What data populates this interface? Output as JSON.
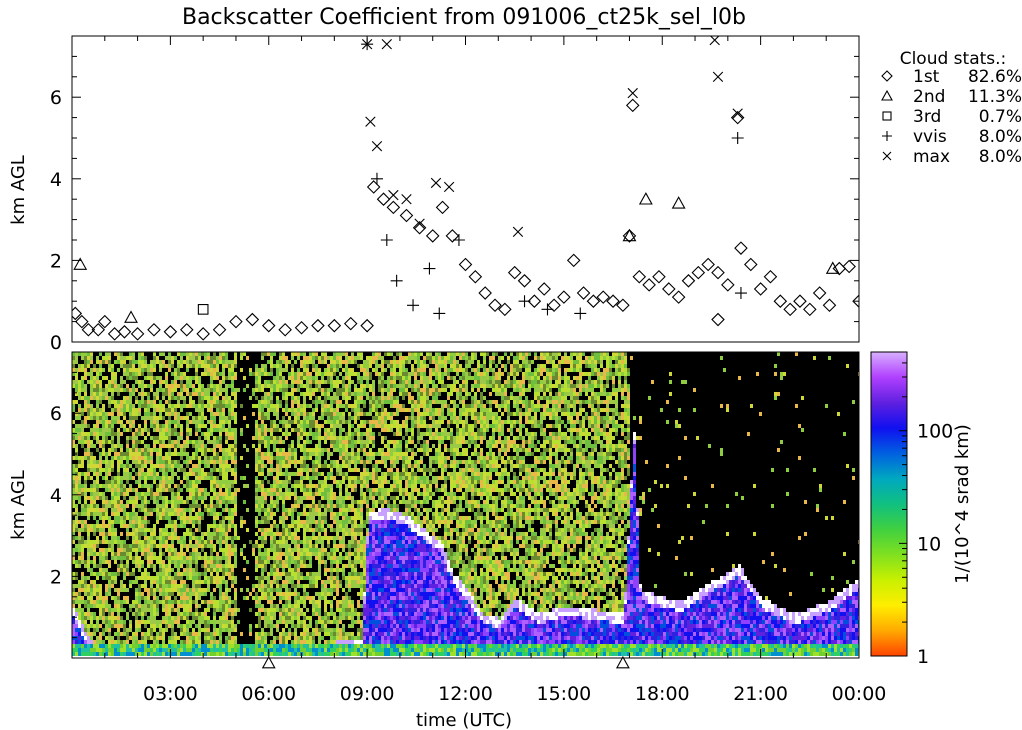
{
  "title": "Backscatter Coefficient from 091006_ct25k_sel_l0b",
  "chart_data": [
    {
      "type": "scatter",
      "ylabel": "km AGL",
      "ylim": [
        0,
        7.5
      ],
      "yticks": [
        0,
        2,
        4,
        6
      ],
      "xlim": [
        0,
        24
      ],
      "grid": false,
      "legend": {
        "title": "Cloud stats.:",
        "placement": "right",
        "entries": [
          {
            "marker": "diamond",
            "label": "1st",
            "value": "82.6%"
          },
          {
            "marker": "triangle",
            "label": "2nd",
            "value": "11.3%"
          },
          {
            "marker": "square",
            "label": "3rd",
            "value": "0.7%"
          },
          {
            "marker": "plus",
            "label": "vvis",
            "value": "8.0%"
          },
          {
            "marker": "cross",
            "label": "max",
            "value": "8.0%"
          }
        ]
      },
      "series": [
        {
          "name": "1st",
          "marker": "diamond",
          "points": [
            [
              0.1,
              0.7
            ],
            [
              0.3,
              0.5
            ],
            [
              0.5,
              0.3
            ],
            [
              0.8,
              0.3
            ],
            [
              1.0,
              0.5
            ],
            [
              1.3,
              0.2
            ],
            [
              1.6,
              0.25
            ],
            [
              2.0,
              0.2
            ],
            [
              2.5,
              0.3
            ],
            [
              3.0,
              0.25
            ],
            [
              3.5,
              0.3
            ],
            [
              4.0,
              0.2
            ],
            [
              4.5,
              0.3
            ],
            [
              5.0,
              0.5
            ],
            [
              5.5,
              0.55
            ],
            [
              6.0,
              0.4
            ],
            [
              6.5,
              0.3
            ],
            [
              7.0,
              0.35
            ],
            [
              7.5,
              0.4
            ],
            [
              8.0,
              0.4
            ],
            [
              8.5,
              0.45
            ],
            [
              9.0,
              0.4
            ],
            [
              9.2,
              3.8
            ],
            [
              9.5,
              3.5
            ],
            [
              9.8,
              3.3
            ],
            [
              10.2,
              3.1
            ],
            [
              10.6,
              2.8
            ],
            [
              11.0,
              2.6
            ],
            [
              11.3,
              3.3
            ],
            [
              11.6,
              2.6
            ],
            [
              12.0,
              1.9
            ],
            [
              12.3,
              1.6
            ],
            [
              12.6,
              1.2
            ],
            [
              12.9,
              0.9
            ],
            [
              13.2,
              0.8
            ],
            [
              13.5,
              1.7
            ],
            [
              13.8,
              1.5
            ],
            [
              14.1,
              1.0
            ],
            [
              14.4,
              1.3
            ],
            [
              14.7,
              0.9
            ],
            [
              15.0,
              1.1
            ],
            [
              15.3,
              2.0
            ],
            [
              15.6,
              1.2
            ],
            [
              15.9,
              1.0
            ],
            [
              16.2,
              1.1
            ],
            [
              16.5,
              1.0
            ],
            [
              16.8,
              0.9
            ],
            [
              17.0,
              2.6
            ],
            [
              17.1,
              5.8
            ],
            [
              17.3,
              1.6
            ],
            [
              17.6,
              1.4
            ],
            [
              17.9,
              1.6
            ],
            [
              18.2,
              1.3
            ],
            [
              18.5,
              1.1
            ],
            [
              18.8,
              1.5
            ],
            [
              19.1,
              1.7
            ],
            [
              19.4,
              1.9
            ],
            [
              19.7,
              1.7
            ],
            [
              19.7,
              0.55
            ],
            [
              20.0,
              1.4
            ],
            [
              20.3,
              5.5
            ],
            [
              20.4,
              2.3
            ],
            [
              20.7,
              1.9
            ],
            [
              21.0,
              1.3
            ],
            [
              21.3,
              1.6
            ],
            [
              21.6,
              1.0
            ],
            [
              21.9,
              0.8
            ],
            [
              22.2,
              1.0
            ],
            [
              22.5,
              0.8
            ],
            [
              22.8,
              1.2
            ],
            [
              23.1,
              0.9
            ],
            [
              23.4,
              1.8
            ],
            [
              23.7,
              1.85
            ],
            [
              24.0,
              1.0
            ]
          ]
        },
        {
          "name": "2nd",
          "marker": "triangle",
          "points": [
            [
              0.25,
              1.9
            ],
            [
              1.8,
              0.6
            ],
            [
              17.0,
              2.6
            ],
            [
              17.5,
              3.5
            ],
            [
              18.5,
              3.4
            ],
            [
              23.2,
              1.8
            ]
          ]
        },
        {
          "name": "3rd",
          "marker": "square",
          "points": [
            [
              4.0,
              0.8
            ]
          ]
        },
        {
          "name": "vvis",
          "marker": "plus",
          "points": [
            [
              9.0,
              7.3
            ],
            [
              9.3,
              4.0
            ],
            [
              9.6,
              2.5
            ],
            [
              9.9,
              1.5
            ],
            [
              10.4,
              0.9
            ],
            [
              10.9,
              1.8
            ],
            [
              11.2,
              0.7
            ],
            [
              11.8,
              2.5
            ],
            [
              13.8,
              1.0
            ],
            [
              14.5,
              0.8
            ],
            [
              15.5,
              0.7
            ],
            [
              20.3,
              5.0
            ],
            [
              20.4,
              1.2
            ]
          ]
        },
        {
          "name": "max",
          "marker": "cross",
          "points": [
            [
              9.0,
              7.3
            ],
            [
              9.1,
              5.4
            ],
            [
              9.3,
              4.8
            ],
            [
              9.6,
              7.3
            ],
            [
              9.8,
              3.6
            ],
            [
              10.2,
              3.5
            ],
            [
              10.6,
              2.9
            ],
            [
              11.1,
              3.9
            ],
            [
              11.5,
              3.8
            ],
            [
              13.6,
              2.7
            ],
            [
              17.1,
              6.1
            ],
            [
              19.6,
              7.4
            ],
            [
              19.7,
              6.5
            ],
            [
              20.3,
              5.6
            ]
          ]
        }
      ]
    },
    {
      "type": "heatmap",
      "ylabel": "km AGL",
      "ylim": [
        0,
        7.5
      ],
      "yticks": [
        2,
        4,
        6
      ],
      "xlabel": "time (UTC)",
      "xlim": [
        0,
        24
      ],
      "xticks": [
        3,
        6,
        9,
        12,
        15,
        18,
        21,
        24
      ],
      "xticklabels": [
        "03:00",
        "06:00",
        "09:00",
        "12:00",
        "15:00",
        "18:00",
        "21:00",
        "00:00"
      ],
      "colorbar": {
        "label": "1/(10^4 srad km)",
        "scale": "log",
        "range": [
          1,
          500
        ],
        "ticks": [
          1,
          10,
          100
        ],
        "ticklabels": [
          "1",
          "10",
          "100"
        ],
        "colors": [
          "#ff4400",
          "#ffaa00",
          "#ffee00",
          "#c8f000",
          "#80e020",
          "#40d040",
          "#10c080",
          "#00a8c0",
          "#0060e0",
          "#1010f0",
          "#6020e0",
          "#b040ff",
          "#d8b0ff"
        ]
      },
      "markers": [
        {
          "shape": "triangle",
          "x": 6.0
        },
        {
          "shape": "triangle",
          "x": 16.8
        }
      ],
      "cloud_base_km": [
        [
          0,
          1.2
        ],
        [
          0.3,
          0.7
        ],
        [
          0.6,
          0.3
        ],
        [
          1,
          0.2
        ],
        [
          1.5,
          0.15
        ],
        [
          3,
          0.15
        ],
        [
          5,
          0.2
        ],
        [
          6,
          0.3
        ],
        [
          7.5,
          0.3
        ],
        [
          8.8,
          0.35
        ],
        [
          9,
          3.5
        ],
        [
          9.5,
          3.6
        ],
        [
          10.2,
          3.4
        ],
        [
          10.8,
          3.0
        ],
        [
          11.2,
          2.8
        ],
        [
          11.6,
          2.0
        ],
        [
          12,
          1.6
        ],
        [
          12.5,
          1.0
        ],
        [
          13,
          0.9
        ],
        [
          13.5,
          1.4
        ],
        [
          14.2,
          1.0
        ],
        [
          15,
          1.2
        ],
        [
          16,
          1.1
        ],
        [
          16.8,
          1.0
        ],
        [
          17.1,
          5.6
        ],
        [
          17.3,
          1.6
        ],
        [
          18.5,
          1.3
        ],
        [
          19.5,
          1.8
        ],
        [
          20.3,
          2.2
        ],
        [
          21,
          1.4
        ],
        [
          22,
          1.0
        ],
        [
          23,
          1.3
        ],
        [
          24,
          1.9
        ]
      ]
    }
  ]
}
